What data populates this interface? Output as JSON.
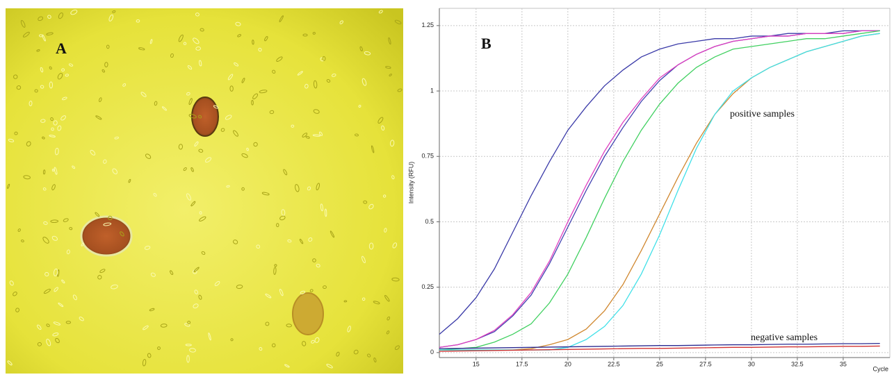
{
  "panel_a": {
    "label": "A"
  },
  "chart_data": {
    "type": "line",
    "panel_label": "B",
    "y_label": "Intensity (RFU)",
    "x_label": "Cycle",
    "annotations": [
      "positive samples",
      "negative samples"
    ],
    "x": [
      13,
      14,
      15,
      16,
      17,
      18,
      19,
      20,
      21,
      22,
      23,
      24,
      25,
      26,
      27,
      28,
      29,
      30,
      31,
      32,
      33,
      34,
      35,
      36,
      37
    ],
    "series": [
      {
        "color": "#3a3aa8",
        "values": [
          0.07,
          0.13,
          0.21,
          0.32,
          0.46,
          0.6,
          0.73,
          0.85,
          0.94,
          1.02,
          1.08,
          1.13,
          1.16,
          1.18,
          1.19,
          1.2,
          1.2,
          1.21,
          1.21,
          1.22,
          1.22,
          1.22,
          1.23,
          1.23,
          1.23
        ]
      },
      {
        "color": "#4040b0",
        "values": [
          0.02,
          0.03,
          0.05,
          0.08,
          0.14,
          0.22,
          0.34,
          0.48,
          0.62,
          0.75,
          0.86,
          0.96,
          1.04,
          1.1,
          1.14,
          1.17,
          1.19,
          1.2,
          1.21,
          1.21,
          1.22,
          1.22,
          1.22,
          1.23,
          1.23
        ]
      },
      {
        "color": "#e040c0",
        "values": [
          0.02,
          0.03,
          0.05,
          0.085,
          0.145,
          0.23,
          0.35,
          0.5,
          0.64,
          0.77,
          0.88,
          0.97,
          1.05,
          1.1,
          1.14,
          1.17,
          1.19,
          1.2,
          1.21,
          1.21,
          1.22,
          1.22,
          1.22,
          1.23,
          1.23
        ]
      },
      {
        "color": "#40d060",
        "values": [
          0.01,
          0.015,
          0.02,
          0.04,
          0.07,
          0.11,
          0.19,
          0.3,
          0.44,
          0.59,
          0.73,
          0.85,
          0.95,
          1.03,
          1.09,
          1.13,
          1.16,
          1.17,
          1.18,
          1.19,
          1.2,
          1.2,
          1.21,
          1.22,
          1.23
        ]
      },
      {
        "color": "#d08830",
        "values": [
          0.01,
          0.01,
          0.01,
          0.01,
          0.01,
          0.015,
          0.03,
          0.05,
          0.09,
          0.16,
          0.26,
          0.39,
          0.53,
          0.67,
          0.8,
          0.91,
          0.99,
          1.05,
          1.09,
          1.12,
          1.15,
          1.17,
          1.19,
          1.21,
          1.22
        ]
      },
      {
        "color": "#40e0e8",
        "values": [
          0.01,
          0.01,
          0.01,
          0.01,
          0.01,
          0.01,
          0.01,
          0.02,
          0.05,
          0.1,
          0.18,
          0.3,
          0.45,
          0.62,
          0.78,
          0.91,
          1.0,
          1.05,
          1.09,
          1.12,
          1.15,
          1.17,
          1.19,
          1.21,
          1.22
        ]
      },
      {
        "color": "#2a2a90",
        "values": [
          0.015,
          0.016,
          0.017,
          0.018,
          0.019,
          0.02,
          0.021,
          0.022,
          0.023,
          0.024,
          0.025,
          0.026,
          0.027,
          0.027,
          0.028,
          0.029,
          0.03,
          0.03,
          0.031,
          0.032,
          0.032,
          0.033,
          0.034,
          0.034,
          0.035
        ]
      },
      {
        "color": "#d03030",
        "values": [
          0.005,
          0.006,
          0.007,
          0.008,
          0.009,
          0.01,
          0.011,
          0.012,
          0.013,
          0.014,
          0.015,
          0.016,
          0.016,
          0.017,
          0.018,
          0.019,
          0.02,
          0.02,
          0.021,
          0.022,
          0.022,
          0.023,
          0.024,
          0.024,
          0.025
        ]
      }
    ],
    "xlim": [
      13,
      37.54
    ],
    "ylim": [
      -0.019,
      1.316
    ],
    "xticks": [
      15,
      17.5,
      20,
      22.5,
      25,
      27.5,
      30,
      32.5,
      35
    ],
    "yticks": [
      0,
      0.25,
      0.5,
      0.75,
      1,
      1.25
    ],
    "grid": true
  }
}
